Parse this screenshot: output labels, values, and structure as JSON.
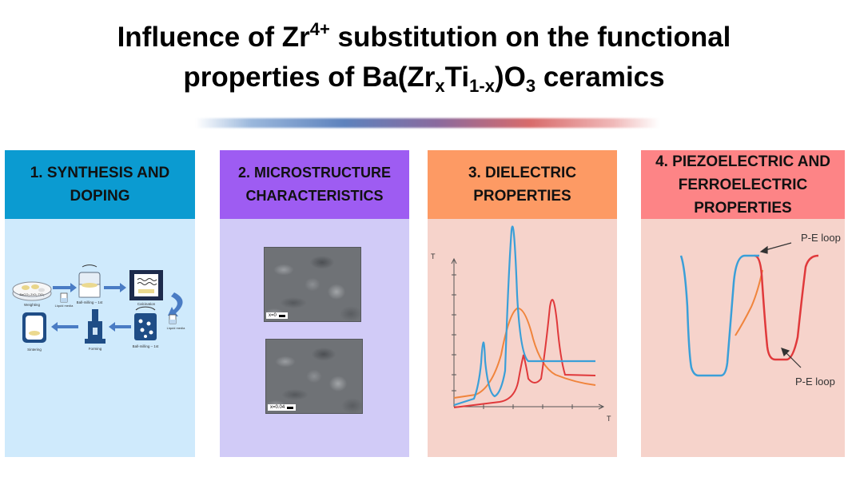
{
  "title": {
    "line1_a": "Influence of Zr",
    "line1_sup": "4+",
    "line1_b": " substitution on the functional",
    "line2_a": "properties of Ba(Zr",
    "line2_sub1": "x",
    "line2_b": "Ti",
    "line2_sub2": "1-x",
    "line2_c": ")O",
    "line2_sub3": "3",
    "line2_d": " ceramics"
  },
  "colors": {
    "panel1_header": "#0b9bd1",
    "panel2_header": "#9e5cf2",
    "panel3_header": "#fd9a64",
    "panel4_header": "#fd8486",
    "curve_blue": "#3a9fd8",
    "curve_red": "#e0393b",
    "curve_orange": "#f0843c"
  },
  "panels": [
    {
      "header": "1. SYNTHESIS AND DOPING",
      "steps": {
        "weighting": "Weighting",
        "chemicals": "BaCO₃ ZrO₂ TiO₂",
        "liquid_media_1": "Liquid media",
        "ball_milling_1": "Ball-milling – 1st",
        "calcination": "Calcination",
        "liquid_media_2": "Liquid media",
        "ball_milling_2": "Ball-milling – 1st",
        "forming": "Forming",
        "sintering": "Sintering"
      }
    },
    {
      "header": "2. MICROSTRUCTURE CHARACTERISTICS",
      "images": [
        {
          "label": "x=0"
        },
        {
          "label": "x=0.04"
        }
      ]
    },
    {
      "header": "3. DIELECTRIC PROPERTIES",
      "axis_y": "T",
      "axis_x": "T"
    },
    {
      "header": "4. PIEZOELECTRIC AND FERROELECTRIC PROPERTIES",
      "annotations": [
        "P-E loop",
        "P-E loop"
      ]
    }
  ]
}
